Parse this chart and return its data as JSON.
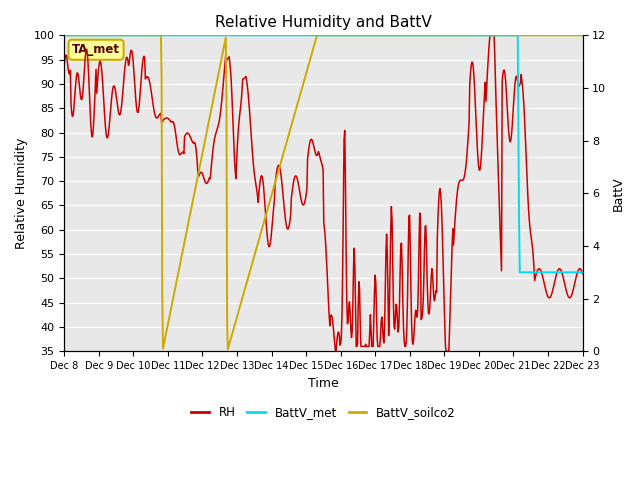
{
  "title": "Relative Humidity and BattV",
  "ylabel_left": "Relative Humidity",
  "ylabel_right": "BattV",
  "xlabel": "Time",
  "ylim_left": [
    35,
    100
  ],
  "ylim_right": [
    0,
    12
  ],
  "yticks_left": [
    35,
    40,
    45,
    50,
    55,
    60,
    65,
    70,
    75,
    80,
    85,
    90,
    95,
    100
  ],
  "yticks_right": [
    0,
    2,
    4,
    6,
    8,
    10,
    12
  ],
  "xtick_labels": [
    "Dec 8",
    "Dec 9",
    "Dec 10",
    "Dec 11",
    "Dec 12",
    "Dec 13",
    "Dec 14",
    "Dec 15",
    "Dec 16",
    "Dec 17",
    "Dec 18",
    "Dec 19",
    "Dec 20",
    "Dec 21",
    "Dec 22",
    "Dec 23"
  ],
  "annotation_text": "TA_met",
  "annotation_bg": "#ffff99",
  "annotation_edge": "#ccaa00",
  "rh_color": "#cc0000",
  "battv_met_color": "#00ddee",
  "battv_soilco2_color": "#ccaa00",
  "bg_color": "#ffffff",
  "plot_bg": "#e8e8e8",
  "grid_color": "#ffffff"
}
